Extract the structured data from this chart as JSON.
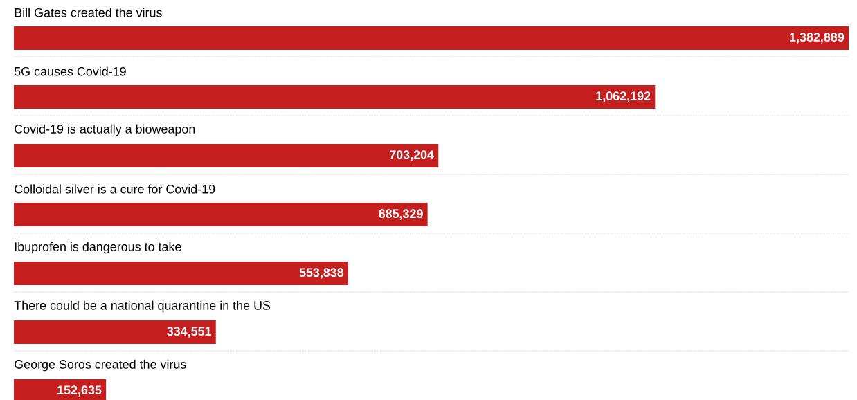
{
  "chart_data": {
    "type": "bar",
    "orientation": "horizontal",
    "color": "#c41e1e",
    "grid": "y",
    "categories": [
      "Bill Gates created the virus",
      "5G causes Covid-19",
      "Covid-19 is actually a bioweapon",
      "Colloidal silver is a cure for Covid-19",
      "Ibuprofen is dangerous to take",
      "There could be a national quarantine in the US",
      "George Soros created the virus"
    ],
    "values": [
      1382889,
      1062192,
      703204,
      685329,
      553838,
      334551,
      152635
    ],
    "value_labels": [
      "1,382,889",
      "1,062,192",
      "703,204",
      "685,329",
      "553,838",
      "334,551",
      "152,635"
    ]
  }
}
